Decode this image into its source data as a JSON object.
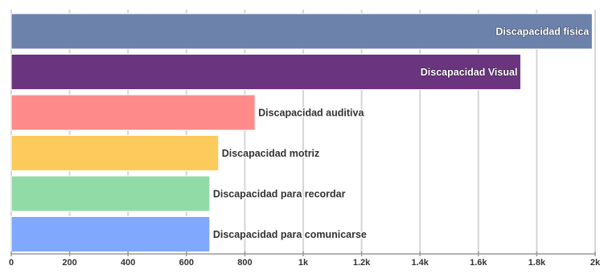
{
  "chart_data": {
    "type": "bar",
    "orientation": "horizontal",
    "categories": [
      "Discapacidad física",
      "Discapacidad Visual",
      "Discapacidad auditiva",
      "Discapacidad motriz",
      "Discapacidad para recordar",
      "Discapacidad para comunicarse"
    ],
    "values": [
      1990,
      1745,
      835,
      710,
      680,
      680
    ],
    "colors": [
      "#6c82ab",
      "#6a347e",
      "#ff8a8a",
      "#fccb5c",
      "#90dba6",
      "#80a8fc"
    ],
    "label_placement": [
      "inside",
      "inside",
      "outside",
      "outside",
      "outside",
      "outside"
    ],
    "xlim": [
      0,
      2000
    ],
    "xticks": [
      0,
      200,
      400,
      600,
      800,
      1000,
      1200,
      1400,
      1600,
      1800,
      2000
    ],
    "xtick_labels": [
      "0",
      "200",
      "400",
      "600",
      "800",
      "1k",
      "1.2k",
      "1.4k",
      "1.6k",
      "1.8k",
      "2k"
    ],
    "grid": true,
    "legend": "none"
  }
}
